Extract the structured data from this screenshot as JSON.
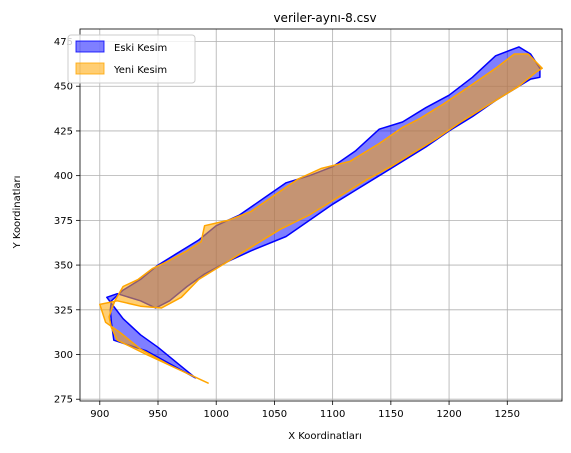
{
  "chart_data": {
    "type": "area",
    "title": "veriler-aynı-8.csv",
    "xlabel": "X Koordinatları",
    "ylabel": "Y Koordinatları",
    "xlim": [
      883,
      1297
    ],
    "ylim": [
      274,
      482
    ],
    "xticks": [
      900,
      950,
      1000,
      1050,
      1100,
      1150,
      1200,
      1250
    ],
    "yticks": [
      275,
      300,
      325,
      350,
      375,
      400,
      425,
      450,
      475
    ],
    "grid": true,
    "legend_position": "top-left",
    "series": [
      {
        "name": "Eski Kesim",
        "fill_color": "#0000ff",
        "edge_color": "#0000ff",
        "fill_opacity": 0.5,
        "points": [
          [
            906,
            332
          ],
          [
            915,
            334
          ],
          [
            935,
            330
          ],
          [
            948,
            326
          ],
          [
            960,
            330
          ],
          [
            975,
            338
          ],
          [
            990,
            345
          ],
          [
            1010,
            352
          ],
          [
            1030,
            358
          ],
          [
            1060,
            366
          ],
          [
            1080,
            375
          ],
          [
            1100,
            384
          ],
          [
            1120,
            392
          ],
          [
            1140,
            400
          ],
          [
            1160,
            408
          ],
          [
            1180,
            416
          ],
          [
            1200,
            425
          ],
          [
            1220,
            433
          ],
          [
            1240,
            442
          ],
          [
            1260,
            450
          ],
          [
            1270,
            454
          ],
          [
            1278,
            455
          ],
          [
            1278,
            460
          ],
          [
            1270,
            468
          ],
          [
            1260,
            472
          ],
          [
            1240,
            467
          ],
          [
            1220,
            455
          ],
          [
            1200,
            445
          ],
          [
            1180,
            438
          ],
          [
            1160,
            430
          ],
          [
            1140,
            426
          ],
          [
            1120,
            414
          ],
          [
            1100,
            405
          ],
          [
            1080,
            400
          ],
          [
            1060,
            396
          ],
          [
            1040,
            387
          ],
          [
            1020,
            378
          ],
          [
            1000,
            372
          ],
          [
            985,
            364
          ],
          [
            965,
            356
          ],
          [
            950,
            350
          ],
          [
            935,
            342
          ],
          [
            920,
            336
          ],
          [
            910,
            330
          ],
          [
            909,
            325
          ],
          [
            910,
            318
          ],
          [
            912,
            308
          ],
          [
            940,
            302
          ],
          [
            982,
            287
          ],
          [
            950,
            304
          ],
          [
            935,
            311
          ],
          [
            920,
            320
          ],
          [
            913,
            326
          ],
          [
            906,
            332
          ]
        ]
      },
      {
        "name": "Yeni Kesim",
        "fill_color": "#ffa500",
        "edge_color": "#ffa500",
        "fill_opacity": 0.55,
        "points": [
          [
            900,
            328
          ],
          [
            915,
            330
          ],
          [
            935,
            327
          ],
          [
            953,
            326
          ],
          [
            970,
            332
          ],
          [
            985,
            342
          ],
          [
            1005,
            350
          ],
          [
            1030,
            360
          ],
          [
            1055,
            370
          ],
          [
            1080,
            378
          ],
          [
            1105,
            388
          ],
          [
            1130,
            398
          ],
          [
            1150,
            405
          ],
          [
            1170,
            413
          ],
          [
            1190,
            421
          ],
          [
            1210,
            430
          ],
          [
            1235,
            440
          ],
          [
            1260,
            450
          ],
          [
            1275,
            458
          ],
          [
            1280,
            460
          ],
          [
            1268,
            468
          ],
          [
            1256,
            468
          ],
          [
            1240,
            460
          ],
          [
            1220,
            451
          ],
          [
            1195,
            440
          ],
          [
            1175,
            432
          ],
          [
            1160,
            427
          ],
          [
            1140,
            418
          ],
          [
            1115,
            408
          ],
          [
            1090,
            404
          ],
          [
            1070,
            398
          ],
          [
            1050,
            389
          ],
          [
            1030,
            380
          ],
          [
            1010,
            375
          ],
          [
            990,
            372
          ],
          [
            987,
            363
          ],
          [
            975,
            358
          ],
          [
            958,
            352
          ],
          [
            945,
            348
          ],
          [
            933,
            342
          ],
          [
            920,
            338
          ],
          [
            913,
            330
          ],
          [
            910,
            325
          ],
          [
            908,
            321
          ],
          [
            910,
            315
          ],
          [
            915,
            308
          ],
          [
            940,
            300
          ],
          [
            993,
            284
          ],
          [
            960,
            294
          ],
          [
            935,
            303
          ],
          [
            918,
            312
          ],
          [
            905,
            318
          ],
          [
            900,
            328
          ]
        ]
      }
    ]
  }
}
